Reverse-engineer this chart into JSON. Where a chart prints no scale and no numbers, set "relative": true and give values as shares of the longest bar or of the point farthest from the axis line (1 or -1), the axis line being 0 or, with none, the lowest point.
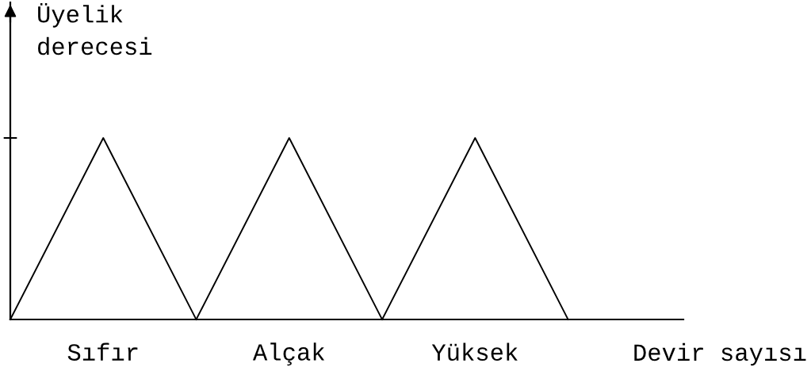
{
  "chart_data": {
    "type": "line",
    "relative": true,
    "xlabel": "Devir sayısı",
    "ylabel": "Üyelik\nderecesi",
    "categories": [
      null,
      null,
      null,
      null,
      null,
      null,
      null
    ],
    "line_style": "solid",
    "series": [
      {
        "name": "Sıfır",
        "color": "#000000",
        "values": [
          0,
          1,
          0,
          null,
          null,
          null,
          null
        ]
      },
      {
        "name": "Alçak",
        "color": "#000000",
        "values": [
          null,
          null,
          0,
          1,
          0,
          null,
          null
        ]
      },
      {
        "name": "Yüksek",
        "color": "#000000",
        "values": [
          null,
          null,
          null,
          null,
          0,
          1,
          0
        ]
      }
    ]
  }
}
